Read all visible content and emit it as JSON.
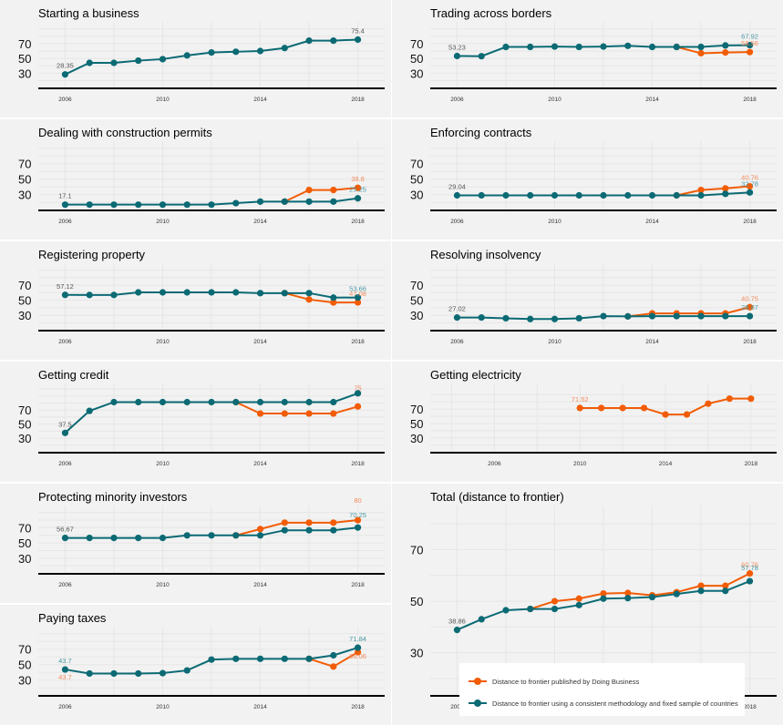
{
  "colors": {
    "db": "#f25c05",
    "consistent": "#0b6a74",
    "db_label": "#f28c5e",
    "consistent_label": "#4a9aa6",
    "first_label": "#555555"
  },
  "legend": {
    "items": [
      {
        "key": "db",
        "label": "Distance to frontier published by Doing Business"
      },
      {
        "key": "consistent",
        "label": "Distance to frontier using a consistent methodology and fixed sample of countries"
      }
    ]
  },
  "chart_data": [
    {
      "type": "line",
      "title": "Starting a business",
      "x_ticks": [
        2006,
        2010,
        2014,
        2018
      ],
      "y_ticks": [
        30,
        50,
        70
      ],
      "xlim": [
        2004.9,
        2019.1
      ],
      "ylim": [
        12,
        92
      ],
      "series": [
        {
          "key": "consistent",
          "name": "Distance to frontier using a consistent methodology and fixed sample of countries",
          "x": [
            2006,
            2007,
            2008,
            2009,
            2010,
            2011,
            2012,
            2013,
            2014,
            2015,
            2016,
            2017,
            2018
          ],
          "y": [
            28.35,
            44,
            44,
            47,
            49,
            54,
            58,
            59,
            60,
            64,
            74,
            74,
            75.4
          ]
        }
      ],
      "labels": [
        {
          "text": "28.35",
          "x": 2006,
          "y": 28.35,
          "color": "first_label"
        },
        {
          "text": "75.4",
          "x": 2018,
          "y": 75.4,
          "color": "first_label"
        }
      ]
    },
    {
      "type": "line",
      "title": "Trading across borders",
      "x_ticks": [
        2006,
        2010,
        2014,
        2018
      ],
      "y_ticks": [
        30,
        50,
        70
      ],
      "xlim": [
        2004.9,
        2019.1
      ],
      "ylim": [
        12,
        92
      ],
      "series": [
        {
          "key": "db",
          "name": "Distance to frontier published by Doing Business",
          "x": [
            2015,
            2016,
            2017,
            2018
          ],
          "y": [
            65.5,
            57,
            58,
            58.56
          ]
        },
        {
          "key": "consistent",
          "name": "Distance to frontier using a consistent methodology and fixed sample of countries",
          "x": [
            2006,
            2007,
            2008,
            2009,
            2010,
            2011,
            2012,
            2013,
            2014,
            2015,
            2016,
            2017,
            2018
          ],
          "y": [
            53.23,
            53,
            65.5,
            65.5,
            66,
            65.5,
            66,
            67,
            65.5,
            65.5,
            65.5,
            67.5,
            67.92
          ]
        }
      ],
      "labels": [
        {
          "text": "53.23",
          "x": 2006,
          "y": 53.23,
          "color": "first_label"
        },
        {
          "text": "67.92",
          "x": 2018,
          "y": 67.92,
          "color": "consistent_label"
        },
        {
          "text": "58.56",
          "x": 2018,
          "y": 58.56,
          "color": "db_label"
        }
      ]
    },
    {
      "type": "line",
      "title": "Dealing with construction permits",
      "x_ticks": [
        2006,
        2010,
        2014,
        2018
      ],
      "y_ticks": [
        30,
        50,
        70
      ],
      "xlim": [
        2004.9,
        2019.1
      ],
      "ylim": [
        12,
        92
      ],
      "series": [
        {
          "key": "db",
          "name": "Distance to frontier published by Doing Business",
          "x": [
            2015,
            2016,
            2017,
            2018
          ],
          "y": [
            21,
            36,
            36,
            38.8
          ]
        },
        {
          "key": "consistent",
          "name": "Distance to frontier using a consistent methodology and fixed sample of countries",
          "x": [
            2006,
            2007,
            2008,
            2009,
            2010,
            2011,
            2012,
            2013,
            2014,
            2015,
            2016,
            2017,
            2018
          ],
          "y": [
            17.1,
            17.1,
            17.1,
            17.1,
            17.1,
            17.1,
            17.1,
            19,
            21,
            21,
            21,
            21,
            25.25
          ]
        }
      ],
      "labels": [
        {
          "text": "17.1",
          "x": 2006,
          "y": 17.1,
          "color": "first_label"
        },
        {
          "text": "38.8",
          "x": 2018,
          "y": 38.8,
          "color": "db_label"
        },
        {
          "text": "25.25",
          "x": 2018,
          "y": 25.25,
          "color": "consistent_label"
        }
      ]
    },
    {
      "type": "line",
      "title": "Enforcing contracts",
      "x_ticks": [
        2006,
        2010,
        2014,
        2018
      ],
      "y_ticks": [
        30,
        50,
        70
      ],
      "xlim": [
        2004.9,
        2019.1
      ],
      "ylim": [
        12,
        92
      ],
      "series": [
        {
          "key": "db",
          "name": "Distance to frontier published by Doing Business",
          "x": [
            2015,
            2016,
            2017,
            2018
          ],
          "y": [
            29.04,
            36,
            38,
            40.76
          ]
        },
        {
          "key": "consistent",
          "name": "Distance to frontier using a consistent methodology and fixed sample of countries",
          "x": [
            2006,
            2007,
            2008,
            2009,
            2010,
            2011,
            2012,
            2013,
            2014,
            2015,
            2016,
            2017,
            2018
          ],
          "y": [
            29.04,
            29.04,
            29.04,
            29.04,
            29.04,
            29.04,
            29.04,
            29.04,
            29.04,
            29.04,
            29.04,
            31,
            32.78
          ]
        }
      ],
      "labels": [
        {
          "text": "29.04",
          "x": 2006,
          "y": 29.04,
          "color": "first_label"
        },
        {
          "text": "40.76",
          "x": 2018,
          "y": 40.76,
          "color": "db_label"
        },
        {
          "text": "32.78",
          "x": 2018,
          "y": 32.78,
          "color": "consistent_label"
        }
      ]
    },
    {
      "type": "line",
      "title": "Registering property",
      "x_ticks": [
        2006,
        2010,
        2014,
        2018
      ],
      "y_ticks": [
        30,
        50,
        70
      ],
      "xlim": [
        2004.9,
        2019.1
      ],
      "ylim": [
        12,
        92
      ],
      "series": [
        {
          "key": "db",
          "name": "Distance to frontier published by Doing Business",
          "x": [
            2015,
            2016,
            2017,
            2018
          ],
          "y": [
            59.5,
            51,
            47,
            47.08
          ]
        },
        {
          "key": "consistent",
          "name": "Distance to frontier using a consistent methodology and fixed sample of countries",
          "x": [
            2006,
            2007,
            2008,
            2009,
            2010,
            2011,
            2012,
            2013,
            2014,
            2015,
            2016,
            2017,
            2018
          ],
          "y": [
            57.12,
            57,
            57,
            60.5,
            60.5,
            60.5,
            60.5,
            60.5,
            59.5,
            59.5,
            59.5,
            53.5,
            53.66
          ]
        }
      ],
      "labels": [
        {
          "text": "57.12",
          "x": 2006,
          "y": 57.12,
          "color": "first_label"
        },
        {
          "text": "53.66",
          "x": 2018,
          "y": 53.66,
          "color": "consistent_label"
        },
        {
          "text": "47.08",
          "x": 2018,
          "y": 47.08,
          "color": "db_label"
        }
      ]
    },
    {
      "type": "line",
      "title": "Resolving insolvency",
      "x_ticks": [
        2006,
        2010,
        2014,
        2018
      ],
      "y_ticks": [
        30,
        50,
        70
      ],
      "xlim": [
        2004.9,
        2019.1
      ],
      "ylim": [
        12,
        92
      ],
      "series": [
        {
          "key": "db",
          "name": "Distance to frontier published by Doing Business",
          "x": [
            2013,
            2014,
            2015,
            2016,
            2017,
            2018
          ],
          "y": [
            28.5,
            32.5,
            32.5,
            32.5,
            32.5,
            40.75
          ]
        },
        {
          "key": "consistent",
          "name": "Distance to frontier using a consistent methodology and fixed sample of countries",
          "x": [
            2006,
            2007,
            2008,
            2009,
            2010,
            2011,
            2012,
            2013,
            2014,
            2015,
            2016,
            2017,
            2018
          ],
          "y": [
            27.02,
            27,
            26,
            25,
            25,
            26,
            28.87,
            28.5,
            28.87,
            28.87,
            28.87,
            28.87,
            28.87
          ]
        }
      ],
      "labels": [
        {
          "text": "27.02",
          "x": 2006,
          "y": 27.02,
          "color": "first_label"
        },
        {
          "text": "40.75",
          "x": 2018,
          "y": 40.75,
          "color": "db_label"
        },
        {
          "text": "28.87",
          "x": 2018,
          "y": 28.87,
          "color": "consistent_label"
        }
      ]
    },
    {
      "type": "line",
      "title": "Getting credit",
      "x_ticks": [
        2006,
        2010,
        2014,
        2018
      ],
      "y_ticks": [
        30,
        50,
        70
      ],
      "xlim": [
        2004.9,
        2019.1
      ],
      "ylim": [
        12,
        100
      ],
      "series": [
        {
          "key": "db",
          "name": "Distance to frontier published by Doing Business",
          "x": [
            2013,
            2014,
            2015,
            2016,
            2017,
            2018
          ],
          "y": [
            81.25,
            65,
            65,
            65,
            65,
            75
          ]
        },
        {
          "key": "consistent",
          "name": "Distance to frontier using a consistent methodology and fixed sample of countries",
          "x": [
            2006,
            2007,
            2008,
            2009,
            2010,
            2011,
            2012,
            2013,
            2014,
            2015,
            2016,
            2017,
            2018
          ],
          "y": [
            37.5,
            68.75,
            81.25,
            81.25,
            81.25,
            81.25,
            81.25,
            81.25,
            81.25,
            81.25,
            81.25,
            81.25,
            93.75
          ]
        }
      ],
      "labels": [
        {
          "text": "37.5",
          "x": 2006,
          "y": 37.5,
          "color": "first_label"
        },
        {
          "text": "75",
          "x": 2018,
          "y": 75,
          "color": "db_label",
          "dy": -11
        }
      ]
    },
    {
      "type": "line",
      "title": "Getting electricity",
      "x_ticks": [
        2006,
        2010,
        2014,
        2018
      ],
      "y_ticks": [
        30,
        50,
        70
      ],
      "xlim": [
        2003,
        2019.2
      ],
      "ylim": [
        12,
        98
      ],
      "series": [
        {
          "key": "db",
          "name": "Distance to frontier published by Doing Business",
          "x": [
            2010,
            2011,
            2012,
            2013,
            2014,
            2015,
            2016,
            2017,
            2018
          ],
          "y": [
            71.52,
            71.52,
            71.52,
            71.52,
            62.5,
            62.5,
            77.5,
            84.5,
            84.5
          ]
        }
      ],
      "labels": [
        {
          "text": "71.52",
          "x": 2010,
          "y": 71.52,
          "color": "db_label"
        }
      ]
    },
    {
      "type": "line",
      "title": "Protecting minority investors",
      "x_ticks": [
        2006,
        2010,
        2014,
        2018
      ],
      "y_ticks": [
        30,
        50,
        70
      ],
      "xlim": [
        2004.9,
        2019.1
      ],
      "ylim": [
        12,
        92
      ],
      "series": [
        {
          "key": "db",
          "name": "Distance to frontier published by Doing Business",
          "x": [
            2013,
            2014,
            2015,
            2016,
            2017,
            2018
          ],
          "y": [
            60,
            68.3,
            76.7,
            76.7,
            76.7,
            80
          ]
        },
        {
          "key": "consistent",
          "name": "Distance to frontier using a consistent methodology and fixed sample of countries",
          "x": [
            2006,
            2007,
            2008,
            2009,
            2010,
            2011,
            2012,
            2013,
            2014,
            2015,
            2016,
            2017,
            2018
          ],
          "y": [
            56.67,
            56.67,
            56.67,
            56.67,
            56.67,
            60,
            60,
            60,
            60,
            66.7,
            66.7,
            66.7,
            70.25
          ]
        }
      ],
      "labels": [
        {
          "text": "56.67",
          "x": 2006,
          "y": 56.67,
          "color": "first_label"
        },
        {
          "text": "80",
          "x": 2018,
          "y": 80,
          "color": "db_label",
          "dy": -12
        },
        {
          "text": "70.25",
          "x": 2018,
          "y": 70.25,
          "color": "consistent_label",
          "dy": -4
        }
      ]
    },
    {
      "type": "line",
      "title": "Total (distance to frontier)",
      "x_ticks": [
        2006,
        2010,
        2014,
        2018
      ],
      "y_ticks": [
        30,
        50,
        70
      ],
      "xlim": [
        2004.9,
        2019.1
      ],
      "ylim": [
        14,
        85
      ],
      "series": [
        {
          "key": "db",
          "name": "Distance to frontier published by Doing Business",
          "x": [
            2009,
            2010,
            2011,
            2012,
            2013,
            2014,
            2015,
            2016,
            2017,
            2018
          ],
          "y": [
            47,
            50,
            51,
            53,
            53.2,
            52.3,
            53.5,
            56,
            56,
            60.76
          ]
        },
        {
          "key": "consistent",
          "name": "Distance to frontier using a consistent methodology and fixed sample of countries",
          "x": [
            2006,
            2007,
            2008,
            2009,
            2010,
            2011,
            2012,
            2013,
            2014,
            2015,
            2016,
            2017,
            2018
          ],
          "y": [
            38.86,
            43,
            46.5,
            47,
            47,
            48.5,
            51,
            51.2,
            51.6,
            52.8,
            54,
            54,
            57.78
          ]
        }
      ],
      "labels": [
        {
          "text": "38.86",
          "x": 2006,
          "y": 38.86,
          "color": "first_label"
        },
        {
          "text": "60.76",
          "x": 2018,
          "y": 60.76,
          "color": "db_label"
        },
        {
          "text": "57.78",
          "x": 2018,
          "y": 57.78,
          "color": "consistent_label",
          "dy": -5
        }
      ]
    },
    {
      "type": "line",
      "title": "Paying taxes",
      "x_ticks": [
        2006,
        2010,
        2014,
        2018
      ],
      "y_ticks": [
        30,
        50,
        70
      ],
      "xlim": [
        2004.9,
        2019.1
      ],
      "ylim": [
        12,
        92
      ],
      "series": [
        {
          "key": "db",
          "name": "Distance to frontier published by Doing Business",
          "x": [
            2016,
            2017,
            2018
          ],
          "y": [
            57.5,
            47.5,
            66.06
          ]
        },
        {
          "key": "consistent",
          "name": "Distance to frontier using a consistent methodology and fixed sample of countries",
          "x": [
            2006,
            2007,
            2008,
            2009,
            2010,
            2011,
            2012,
            2013,
            2014,
            2015,
            2016,
            2017,
            2018
          ],
          "y": [
            43.7,
            38.5,
            38.5,
            38.5,
            39,
            42.5,
            56.5,
            57.5,
            57.5,
            57.5,
            57.5,
            62,
            71.84
          ]
        }
      ],
      "labels": [
        {
          "text": "43.7",
          "x": 2006,
          "y": 43.7,
          "color": "consistent_label"
        },
        {
          "text": "43.7",
          "x": 2006,
          "y": 43.7,
          "color": "db_label",
          "dy": 18
        },
        {
          "text": "71.84",
          "x": 2018,
          "y": 71.84,
          "color": "consistent_label"
        },
        {
          "text": "66.06",
          "x": 2018,
          "y": 66.06,
          "color": "db_label",
          "dy": 14
        }
      ]
    }
  ]
}
